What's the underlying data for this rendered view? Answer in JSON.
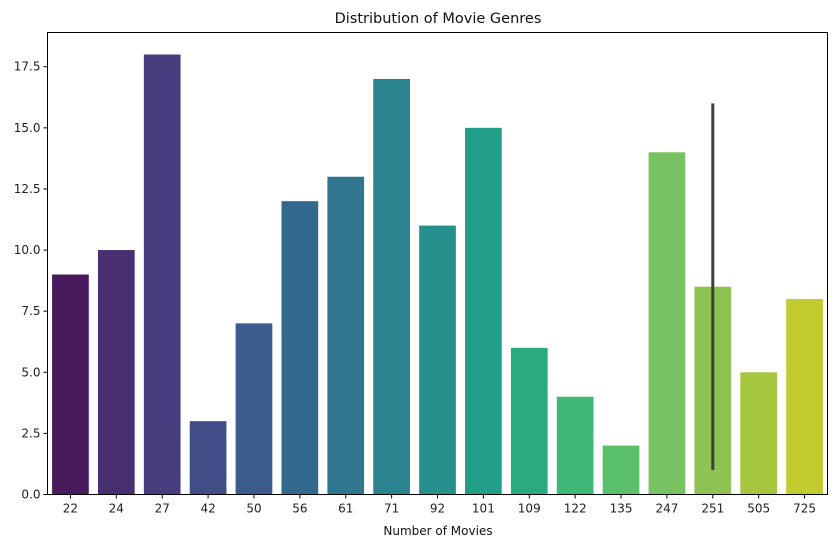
{
  "chart_data": {
    "type": "bar",
    "title": "Distribution of Movie Genres",
    "xlabel": "Number of Movies",
    "ylabel": "",
    "categories": [
      "22",
      "24",
      "27",
      "42",
      "50",
      "56",
      "61",
      "71",
      "92",
      "101",
      "109",
      "122",
      "135",
      "247",
      "251",
      "505",
      "725"
    ],
    "values": [
      9,
      10,
      18,
      3,
      7,
      12,
      13,
      17,
      11,
      15,
      6,
      4,
      2,
      14,
      8.5,
      5,
      8
    ],
    "error_bars": [
      {
        "category": "251",
        "low": 1,
        "high": 16
      }
    ],
    "ylim": [
      0,
      18.9
    ],
    "yticks": [
      "0.0",
      "2.5",
      "5.0",
      "7.5",
      "10.0",
      "12.5",
      "15.0",
      "17.5"
    ],
    "colors": [
      "#471a5e",
      "#482f70",
      "#463e7e",
      "#404d86",
      "#3a5b8b",
      "#33698d",
      "#2f758e",
      "#2a838e",
      "#25908c",
      "#219e87",
      "#2aaa80",
      "#3fb776",
      "#5ac06b",
      "#79c261",
      "#8ec253",
      "#a7c63f",
      "#c3cc2f"
    ],
    "errorbar_color": "#3f3f3f",
    "grid": false,
    "legend": "none"
  }
}
